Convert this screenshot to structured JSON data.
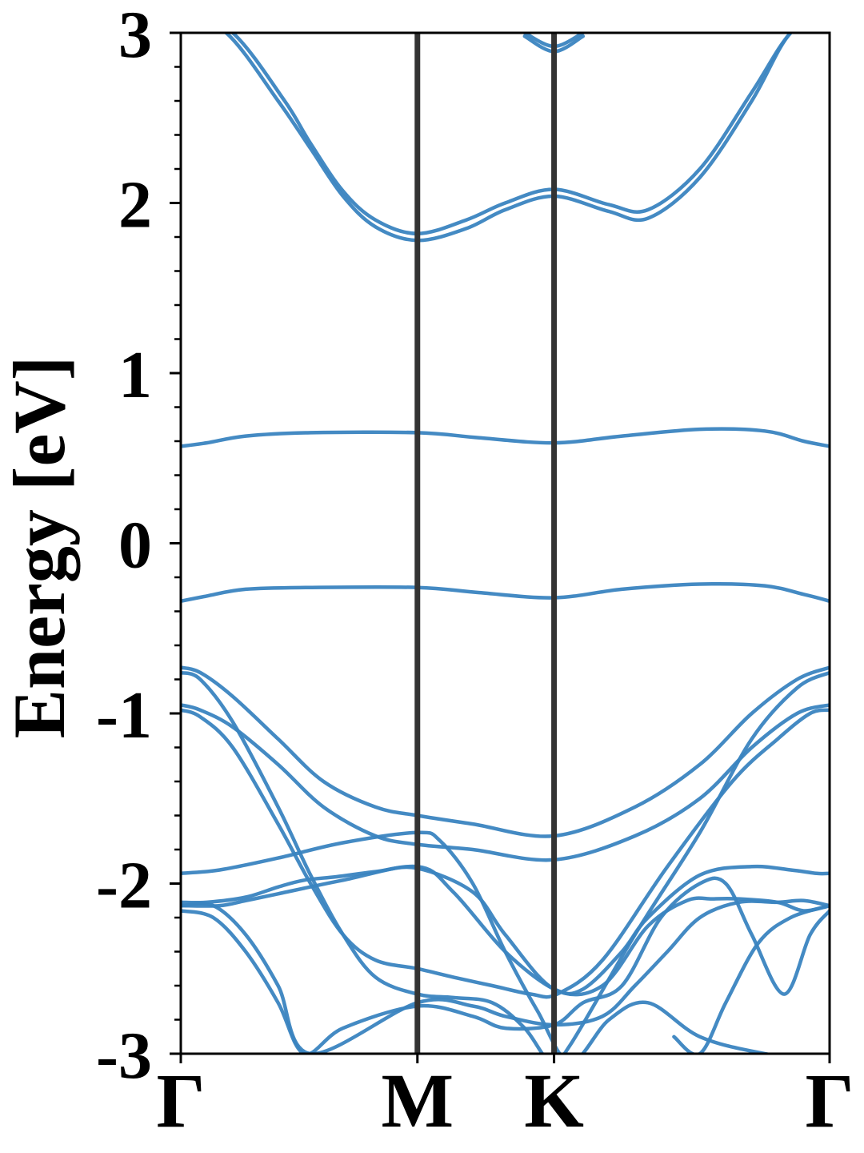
{
  "chart_data": {
    "type": "line",
    "title": "",
    "ylabel": "Energy [eV]",
    "xlabel": "",
    "ylim": [
      -3,
      3
    ],
    "xlim": [
      0,
      1
    ],
    "y_ticks": [
      -3,
      -2,
      -1,
      0,
      1,
      2,
      3
    ],
    "y_tick_labels": [
      "-3",
      "-2",
      "-1",
      "0",
      "1",
      "2",
      "3"
    ],
    "y_minor_step": 0.2,
    "k_points": [
      {
        "label": "Γ",
        "x": 0
      },
      {
        "label": "M",
        "x": 0.3647
      },
      {
        "label": "K",
        "x": 0.5753
      },
      {
        "label": "Γ",
        "x": 1
      }
    ],
    "series_color": "#3a84c0",
    "kpoint_line_color": "#333333",
    "grid": false,
    "legend": "none",
    "bands": [
      {
        "x": [
          0,
          0.08,
          0.16,
          0.2,
          0.25,
          0.3,
          0.3647,
          0.44,
          0.5,
          0.5753,
          0.66,
          0.72,
          0.8,
          0.88,
          0.94,
          1
        ],
        "y": [
          3.15,
          3.0,
          2.6,
          2.35,
          2.07,
          1.9,
          1.82,
          1.9,
          2.0,
          2.08,
          1.99,
          1.96,
          2.2,
          2.65,
          3.0,
          3.15
        ]
      },
      {
        "x": [
          0,
          0.07,
          0.15,
          0.2,
          0.25,
          0.3,
          0.3647,
          0.44,
          0.5,
          0.5753,
          0.66,
          0.72,
          0.8,
          0.88,
          0.94,
          1
        ],
        "y": [
          3.1,
          3.0,
          2.6,
          2.32,
          2.04,
          1.86,
          1.78,
          1.85,
          1.96,
          2.04,
          1.95,
          1.91,
          2.15,
          2.6,
          3.0,
          3.1
        ]
      },
      {
        "x": [
          0.53,
          0.5753,
          0.62
        ],
        "y": [
          3.0,
          2.92,
          3.0
        ]
      },
      {
        "x": [
          0.53,
          0.5753,
          0.62
        ],
        "y": [
          2.98,
          2.89,
          2.98
        ]
      },
      {
        "x": [
          0,
          0.04,
          0.1,
          0.2,
          0.3647,
          0.46,
          0.5753,
          0.68,
          0.8,
          0.9,
          0.96,
          1
        ],
        "y": [
          0.57,
          0.59,
          0.63,
          0.65,
          0.65,
          0.62,
          0.59,
          0.63,
          0.67,
          0.66,
          0.6,
          0.57
        ]
      },
      {
        "x": [
          0,
          0.04,
          0.1,
          0.2,
          0.3647,
          0.46,
          0.5753,
          0.68,
          0.8,
          0.9,
          0.96,
          1
        ],
        "y": [
          -0.34,
          -0.31,
          -0.27,
          -0.26,
          -0.26,
          -0.29,
          -0.32,
          -0.27,
          -0.24,
          -0.25,
          -0.3,
          -0.34
        ]
      },
      {
        "x": [
          0,
          0.03,
          0.08,
          0.15,
          0.22,
          0.3,
          0.3647,
          0.45,
          0.5753,
          0.7,
          0.8,
          0.88,
          0.95,
          1
        ],
        "y": [
          -0.73,
          -0.76,
          -0.9,
          -1.15,
          -1.4,
          -1.55,
          -1.6,
          -1.65,
          -1.72,
          -1.55,
          -1.3,
          -1.0,
          -0.8,
          -0.73
        ]
      },
      {
        "x": [
          0,
          0.03,
          0.08,
          0.15,
          0.22,
          0.3,
          0.3647,
          0.45,
          0.5753,
          0.7,
          0.8,
          0.88,
          0.95,
          1
        ],
        "y": [
          -0.95,
          -0.98,
          -1.08,
          -1.3,
          -1.55,
          -1.72,
          -1.77,
          -1.8,
          -1.86,
          -1.72,
          -1.5,
          -1.2,
          -1.0,
          -0.95
        ]
      },
      {
        "x": [
          0,
          0.03,
          0.08,
          0.15,
          0.2,
          0.25,
          0.3,
          0.3647,
          0.42,
          0.48,
          0.53,
          0.57,
          0.6,
          0.7,
          0.8,
          0.88,
          0.95,
          1
        ],
        "y": [
          -0.76,
          -0.8,
          -1.05,
          -1.55,
          -1.95,
          -2.3,
          -2.55,
          -2.65,
          -2.67,
          -2.7,
          -2.85,
          -3.05,
          -2.95,
          -2.3,
          -1.7,
          -1.15,
          -0.85,
          -0.76
        ]
      },
      {
        "x": [
          0,
          0.03,
          0.08,
          0.15,
          0.2,
          0.25,
          0.3,
          0.3647,
          0.42,
          0.48,
          0.54,
          0.58,
          0.65,
          0.75,
          0.85,
          0.92,
          0.97,
          1
        ],
        "y": [
          -0.98,
          -1.02,
          -1.2,
          -1.65,
          -2.0,
          -2.3,
          -2.45,
          -2.5,
          -2.55,
          -2.6,
          -2.65,
          -2.65,
          -2.45,
          -1.9,
          -1.4,
          -1.15,
          -1.0,
          -0.98
        ]
      },
      {
        "x": [
          0,
          0.06,
          0.15,
          0.25,
          0.3647,
          0.4,
          0.45,
          0.5,
          0.55,
          0.6,
          0.66,
          0.72,
          0.8,
          0.9,
          1
        ],
        "y": [
          -1.94,
          -1.92,
          -1.85,
          -1.76,
          -1.7,
          -1.75,
          -2.0,
          -2.4,
          -2.75,
          -3.05,
          -2.8,
          -2.7,
          -2.9,
          -3.0,
          -3.05
        ]
      },
      {
        "x": [
          0,
          0.06,
          0.1,
          0.15,
          0.25,
          0.3647,
          0.42,
          0.5,
          0.5753,
          0.62,
          0.68,
          0.72,
          0.8,
          0.88,
          0.94,
          0.98,
          1
        ],
        "y": [
          -2.13,
          -2.13,
          -2.1,
          -2.06,
          -1.98,
          -1.9,
          -2.05,
          -2.4,
          -2.62,
          -2.62,
          -2.4,
          -2.2,
          -1.95,
          -1.9,
          -1.92,
          -1.94,
          -1.94
        ]
      },
      {
        "x": [
          0,
          0.05,
          0.1,
          0.15,
          0.2,
          0.3647,
          0.45,
          0.5,
          0.5753,
          0.65,
          0.7,
          0.75,
          0.8,
          0.86,
          0.92,
          0.96,
          1
        ],
        "y": [
          -2.13,
          -2.13,
          -2.3,
          -2.6,
          -3.0,
          -2.7,
          -2.72,
          -2.78,
          -2.83,
          -2.78,
          -2.6,
          -2.4,
          -2.2,
          -2.11,
          -2.11,
          -2.1,
          -2.13
        ]
      },
      {
        "x": [
          0,
          0.04,
          0.1,
          0.15,
          0.19,
          0.24,
          0.3,
          0.3647,
          0.45,
          0.5,
          0.5753,
          0.65,
          0.72,
          0.78,
          0.82,
          0.86,
          0.92,
          0.96,
          1
        ],
        "y": [
          -2.11,
          -2.11,
          -2.08,
          -2.02,
          -1.98,
          -1.96,
          -1.93,
          -1.91,
          -2.05,
          -2.3,
          -2.62,
          -2.6,
          -2.25,
          -2.1,
          -2.09,
          -2.09,
          -2.11,
          -2.16,
          -2.13
        ]
      },
      {
        "x": [
          0,
          0.05,
          0.1,
          0.15,
          0.19,
          0.25,
          0.3647,
          0.45,
          0.5,
          0.5753,
          0.62,
          0.68,
          0.74,
          0.8,
          0.84,
          0.88,
          0.93,
          0.97,
          1
        ],
        "y": [
          -2.16,
          -2.2,
          -2.4,
          -2.7,
          -3.0,
          -2.85,
          -2.72,
          -2.78,
          -2.85,
          -2.83,
          -2.7,
          -2.6,
          -2.2,
          -2.0,
          -2.0,
          -2.3,
          -2.65,
          -2.3,
          -2.16
        ]
      },
      {
        "x": [
          0.76,
          0.8,
          0.84,
          0.89,
          0.94,
          1
        ],
        "y": [
          -2.9,
          -3.0,
          -2.7,
          -2.35,
          -2.2,
          -2.13
        ]
      }
    ]
  }
}
